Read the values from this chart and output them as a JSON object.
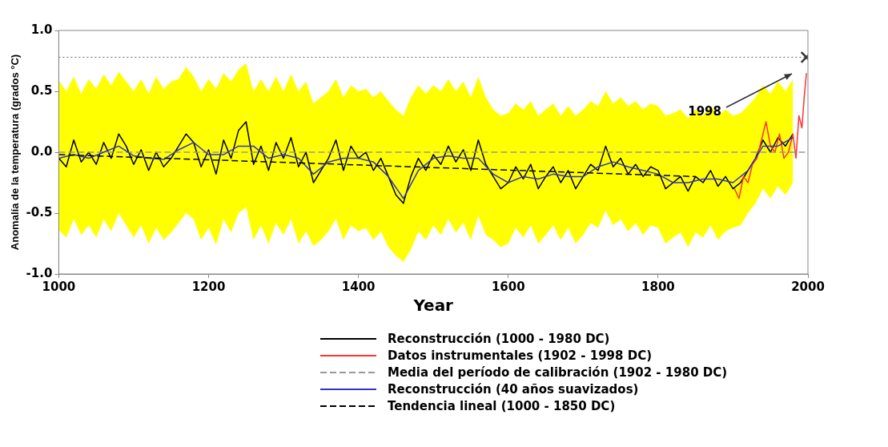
{
  "chart_data": {
    "type": "line",
    "xlabel": "Year",
    "ylabel": "Anomalía de la temperatura (grados °C)",
    "xlim": [
      1000,
      2000
    ],
    "xticks": [
      1000,
      1200,
      1400,
      1600,
      1800,
      2000
    ],
    "ylim": [
      -1,
      1
    ],
    "yticks": [
      {
        "value": -1,
        "label": "-1.0"
      },
      {
        "value": -0.5,
        "label": "-0.5"
      },
      {
        "value": 0,
        "label": "0.0"
      },
      {
        "value": 0.5,
        "label": "0.5"
      },
      {
        "value": 1,
        "label": "1.0"
      }
    ],
    "grid": false,
    "legend": "bottom",
    "marker": "none",
    "ref_lines": [
      {
        "axis": "y",
        "value": 0.78,
        "color": "#666666",
        "line_style": "dotted"
      }
    ],
    "annotations": [
      "1998"
    ],
    "series": [
      {
        "name": "Reconstrucción (1000 - 1980 DC)",
        "color": "#000000",
        "x": [
          1000,
          1010,
          1020,
          1030,
          1040,
          1050,
          1060,
          1070,
          1080,
          1090,
          1100,
          1110,
          1120,
          1130,
          1140,
          1150,
          1160,
          1170,
          1180,
          1190,
          1200,
          1210,
          1220,
          1230,
          1240,
          1250,
          1260,
          1270,
          1280,
          1290,
          1300,
          1310,
          1320,
          1330,
          1340,
          1350,
          1360,
          1370,
          1380,
          1390,
          1400,
          1410,
          1420,
          1430,
          1440,
          1450,
          1460,
          1470,
          1480,
          1490,
          1500,
          1510,
          1520,
          1530,
          1540,
          1550,
          1560,
          1570,
          1580,
          1590,
          1600,
          1610,
          1620,
          1630,
          1640,
          1650,
          1660,
          1670,
          1680,
          1690,
          1700,
          1710,
          1720,
          1730,
          1740,
          1750,
          1760,
          1770,
          1780,
          1790,
          1800,
          1810,
          1820,
          1830,
          1840,
          1850,
          1860,
          1870,
          1880,
          1890,
          1900,
          1910,
          1920,
          1930,
          1940,
          1950,
          1960,
          1970,
          1980
        ],
        "values": [
          -0.05,
          -0.12,
          0.1,
          -0.08,
          0.0,
          -0.1,
          0.08,
          -0.05,
          0.15,
          0.05,
          -0.1,
          0.02,
          -0.15,
          0.0,
          -0.12,
          -0.05,
          0.05,
          0.15,
          0.08,
          -0.12,
          0.02,
          -0.18,
          0.1,
          -0.05,
          0.18,
          0.25,
          -0.1,
          0.05,
          -0.15,
          0.08,
          -0.05,
          0.12,
          -0.12,
          0.0,
          -0.25,
          -0.15,
          -0.05,
          0.1,
          -0.15,
          0.05,
          -0.05,
          0.0,
          -0.15,
          -0.05,
          -0.2,
          -0.35,
          -0.42,
          -0.2,
          -0.05,
          -0.15,
          -0.02,
          -0.1,
          0.05,
          -0.08,
          0.02,
          -0.15,
          0.1,
          -0.1,
          -0.2,
          -0.3,
          -0.25,
          -0.12,
          -0.22,
          -0.1,
          -0.3,
          -0.2,
          -0.12,
          -0.25,
          -0.15,
          -0.3,
          -0.2,
          -0.1,
          -0.15,
          0.05,
          -0.12,
          -0.05,
          -0.18,
          -0.1,
          -0.2,
          -0.12,
          -0.15,
          -0.3,
          -0.25,
          -0.2,
          -0.32,
          -0.2,
          -0.25,
          -0.15,
          -0.28,
          -0.2,
          -0.3,
          -0.25,
          -0.15,
          -0.05,
          0.1,
          0.0,
          0.12,
          0.05,
          0.15
        ],
        "upper": [
          0.59,
          0.5,
          0.62,
          0.48,
          0.6,
          0.52,
          0.64,
          0.55,
          0.66,
          0.58,
          0.5,
          0.6,
          0.48,
          0.62,
          0.52,
          0.58,
          0.6,
          0.7,
          0.62,
          0.5,
          0.6,
          0.52,
          0.65,
          0.58,
          0.68,
          0.73,
          0.5,
          0.6,
          0.5,
          0.62,
          0.5,
          0.64,
          0.5,
          0.58,
          0.4,
          0.45,
          0.5,
          0.6,
          0.45,
          0.55,
          0.5,
          0.52,
          0.45,
          0.5,
          0.42,
          0.35,
          0.3,
          0.45,
          0.55,
          0.48,
          0.55,
          0.5,
          0.6,
          0.5,
          0.58,
          0.45,
          0.62,
          0.45,
          0.35,
          0.3,
          0.32,
          0.4,
          0.35,
          0.42,
          0.3,
          0.35,
          0.4,
          0.3,
          0.38,
          0.3,
          0.35,
          0.42,
          0.38,
          0.5,
          0.4,
          0.45,
          0.38,
          0.42,
          0.35,
          0.4,
          0.38,
          0.3,
          0.32,
          0.35,
          0.28,
          0.35,
          0.3,
          0.38,
          0.3,
          0.35,
          0.3,
          0.32,
          0.38,
          0.45,
          0.55,
          0.48,
          0.58,
          0.5,
          0.6
        ],
        "lower": [
          -0.64,
          -0.7,
          -0.55,
          -0.68,
          -0.6,
          -0.7,
          -0.55,
          -0.65,
          -0.5,
          -0.6,
          -0.7,
          -0.6,
          -0.75,
          -0.62,
          -0.72,
          -0.66,
          -0.58,
          -0.5,
          -0.55,
          -0.72,
          -0.62,
          -0.76,
          -0.55,
          -0.66,
          -0.5,
          -0.45,
          -0.72,
          -0.6,
          -0.75,
          -0.58,
          -0.68,
          -0.55,
          -0.75,
          -0.65,
          -0.77,
          -0.72,
          -0.65,
          -0.55,
          -0.72,
          -0.6,
          -0.65,
          -0.62,
          -0.72,
          -0.65,
          -0.78,
          -0.85,
          -0.9,
          -0.8,
          -0.65,
          -0.72,
          -0.6,
          -0.68,
          -0.55,
          -0.66,
          -0.58,
          -0.72,
          -0.52,
          -0.68,
          -0.72,
          -0.78,
          -0.75,
          -0.62,
          -0.7,
          -0.6,
          -0.75,
          -0.68,
          -0.6,
          -0.72,
          -0.62,
          -0.75,
          -0.68,
          -0.58,
          -0.62,
          -0.48,
          -0.6,
          -0.55,
          -0.65,
          -0.58,
          -0.68,
          -0.6,
          -0.62,
          -0.75,
          -0.7,
          -0.66,
          -0.78,
          -0.66,
          -0.7,
          -0.6,
          -0.72,
          -0.65,
          -0.62,
          -0.6,
          -0.5,
          -0.42,
          -0.3,
          -0.38,
          -0.28,
          -0.35,
          -0.25
        ]
      },
      {
        "name": "Datos instrumentales (1902 - 1998 DC)",
        "color": "#ff3333",
        "x": [
          1902,
          1908,
          1914,
          1920,
          1926,
          1932,
          1938,
          1944,
          1950,
          1956,
          1962,
          1968,
          1974,
          1980,
          1984,
          1988,
          1992,
          1995,
          1998
        ],
        "values": [
          -0.3,
          -0.38,
          -0.2,
          -0.25,
          -0.1,
          -0.05,
          0.1,
          0.25,
          0.05,
          0.0,
          0.15,
          -0.05,
          0.0,
          0.15,
          -0.05,
          0.3,
          0.2,
          0.45,
          0.65
        ]
      },
      {
        "name": "Media del período de calibración (1902 - 1980 DC)",
        "color": "#999999",
        "line_style": "dashed",
        "x": [
          1000,
          2000
        ],
        "values": [
          0,
          0
        ]
      },
      {
        "name": "Reconstrucción (40 años suavizados)",
        "color": "#3333cc",
        "x": [
          1000,
          1020,
          1040,
          1060,
          1080,
          1100,
          1120,
          1140,
          1160,
          1180,
          1200,
          1220,
          1240,
          1260,
          1280,
          1300,
          1320,
          1340,
          1360,
          1380,
          1400,
          1420,
          1440,
          1460,
          1480,
          1500,
          1520,
          1540,
          1560,
          1580,
          1600,
          1620,
          1640,
          1660,
          1680,
          1700,
          1720,
          1740,
          1760,
          1780,
          1800,
          1820,
          1840,
          1860,
          1880,
          1900,
          1920,
          1940,
          1960,
          1980
        ],
        "values": [
          -0.05,
          -0.02,
          -0.05,
          0.0,
          0.05,
          -0.03,
          -0.05,
          -0.06,
          0.02,
          0.08,
          -0.02,
          -0.02,
          0.05,
          0.05,
          -0.05,
          -0.02,
          -0.05,
          -0.18,
          -0.08,
          -0.05,
          -0.05,
          -0.08,
          -0.2,
          -0.38,
          -0.15,
          -0.05,
          -0.03,
          -0.05,
          -0.05,
          -0.18,
          -0.25,
          -0.2,
          -0.22,
          -0.18,
          -0.2,
          -0.2,
          -0.12,
          -0.08,
          -0.12,
          -0.15,
          -0.18,
          -0.25,
          -0.25,
          -0.22,
          -0.22,
          -0.25,
          -0.15,
          0.05,
          0.05,
          0.12
        ]
      },
      {
        "name": "Tendencia lineal (1000 - 1850 DC)",
        "color": "#000000",
        "line_style": "dashed",
        "x": [
          1000,
          1850
        ],
        "values": [
          -0.02,
          -0.2
        ]
      },
      {
        "type": "scatter",
        "color": "#333333",
        "marker": "cross",
        "x": [
          1998
        ],
        "values": [
          0.78
        ]
      }
    ]
  }
}
